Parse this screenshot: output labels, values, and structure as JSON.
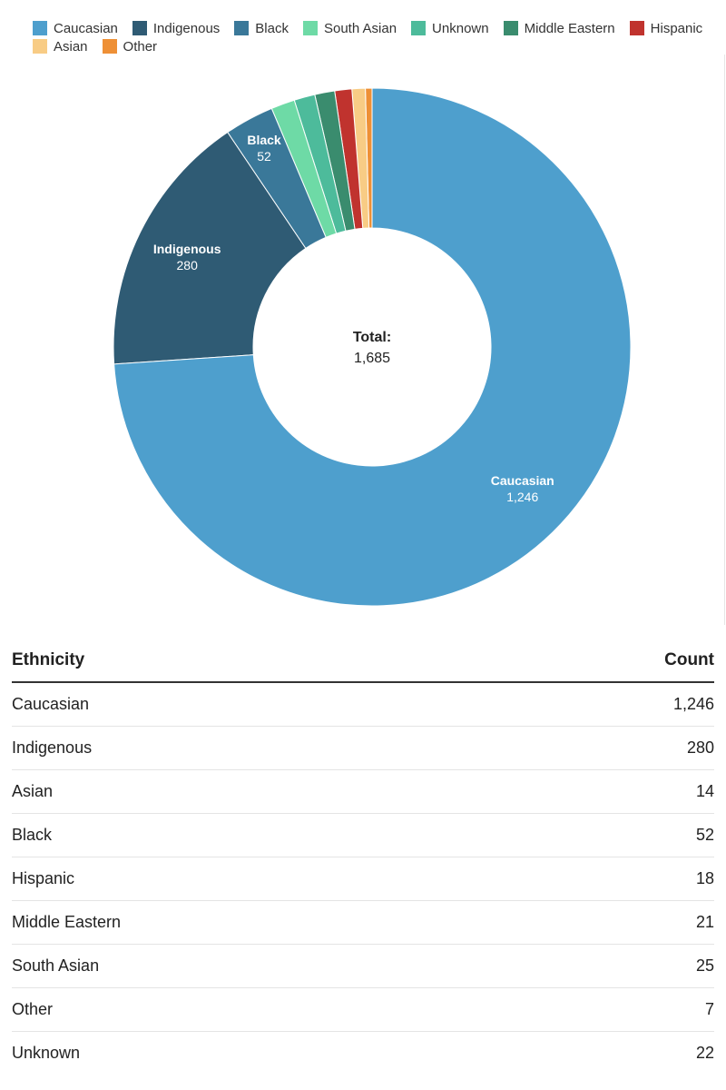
{
  "chart_data": {
    "type": "pie",
    "variant": "donut",
    "slices": [
      {
        "label": "Caucasian",
        "value": 1246,
        "display": "1,246",
        "color": "#4e9fcd"
      },
      {
        "label": "Indigenous",
        "value": 280,
        "display": "280",
        "color": "#2f5b74"
      },
      {
        "label": "Black",
        "value": 52,
        "display": "52",
        "color": "#3a7899"
      },
      {
        "label": "South Asian",
        "value": 25,
        "display": "25",
        "color": "#6edaa6"
      },
      {
        "label": "Unknown",
        "value": 22,
        "display": "22",
        "color": "#4dbb9b"
      },
      {
        "label": "Middle Eastern",
        "value": 21,
        "display": "21",
        "color": "#3a8c6e"
      },
      {
        "label": "Hispanic",
        "value": 18,
        "display": "18",
        "color": "#c0332e"
      },
      {
        "label": "Asian",
        "value": 14,
        "display": "14",
        "color": "#f8cc85"
      },
      {
        "label": "Other",
        "value": 7,
        "display": "7",
        "color": "#ee9036"
      }
    ],
    "labeled_slices": [
      "Caucasian",
      "Indigenous",
      "Black"
    ],
    "center": {
      "title": "Total:",
      "value": "1,685"
    },
    "legend_placement": "top-left"
  },
  "table": {
    "headers": {
      "ethnicity": "Ethnicity",
      "count": "Count"
    },
    "rows": [
      {
        "ethnicity": "Caucasian",
        "count": "1,246"
      },
      {
        "ethnicity": "Indigenous",
        "count": "280"
      },
      {
        "ethnicity": "Asian",
        "count": "14"
      },
      {
        "ethnicity": "Black",
        "count": "52"
      },
      {
        "ethnicity": "Hispanic",
        "count": "18"
      },
      {
        "ethnicity": "Middle Eastern",
        "count": "21"
      },
      {
        "ethnicity": "South Asian",
        "count": "25"
      },
      {
        "ethnicity": "Other",
        "count": "7"
      },
      {
        "ethnicity": "Unknown",
        "count": "22"
      }
    ]
  }
}
